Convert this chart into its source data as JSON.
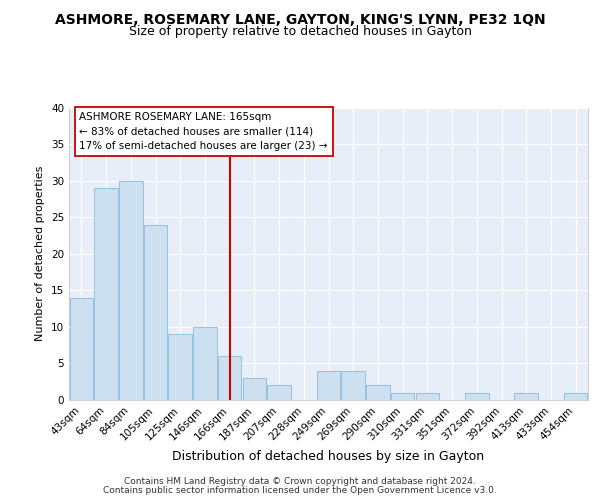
{
  "title1": "ASHMORE, ROSEMARY LANE, GAYTON, KING'S LYNN, PE32 1QN",
  "title2": "Size of property relative to detached houses in Gayton",
  "xlabel": "Distribution of detached houses by size in Gayton",
  "ylabel": "Number of detached properties",
  "categories": [
    "43sqm",
    "64sqm",
    "84sqm",
    "105sqm",
    "125sqm",
    "146sqm",
    "166sqm",
    "187sqm",
    "207sqm",
    "228sqm",
    "249sqm",
    "269sqm",
    "290sqm",
    "310sqm",
    "331sqm",
    "351sqm",
    "372sqm",
    "392sqm",
    "413sqm",
    "433sqm",
    "454sqm"
  ],
  "values": [
    14,
    29,
    30,
    24,
    9,
    10,
    6,
    3,
    2,
    0,
    4,
    4,
    2,
    1,
    1,
    0,
    1,
    0,
    1,
    0,
    1
  ],
  "bar_color": "#cce0f0",
  "bar_edge_color": "#88bbdd",
  "reference_line_index": 6,
  "reference_line_color": "#cc0000",
  "annotation_text": "ASHMORE ROSEMARY LANE: 165sqm\n← 83% of detached houses are smaller (114)\n17% of semi-detached houses are larger (23) →",
  "annotation_box_facecolor": "#ffffff",
  "annotation_box_edgecolor": "#cc0000",
  "ylim": [
    0,
    40
  ],
  "yticks": [
    0,
    5,
    10,
    15,
    20,
    25,
    30,
    35,
    40
  ],
  "footer1": "Contains HM Land Registry data © Crown copyright and database right 2024.",
  "footer2": "Contains public sector information licensed under the Open Government Licence v3.0.",
  "fig_bg_color": "#ffffff",
  "plot_bg_color": "#e8eef8",
  "grid_color": "#ffffff",
  "title1_fontsize": 10,
  "title2_fontsize": 9,
  "xlabel_fontsize": 9,
  "ylabel_fontsize": 8,
  "tick_fontsize": 7.5,
  "footer_fontsize": 6.5
}
